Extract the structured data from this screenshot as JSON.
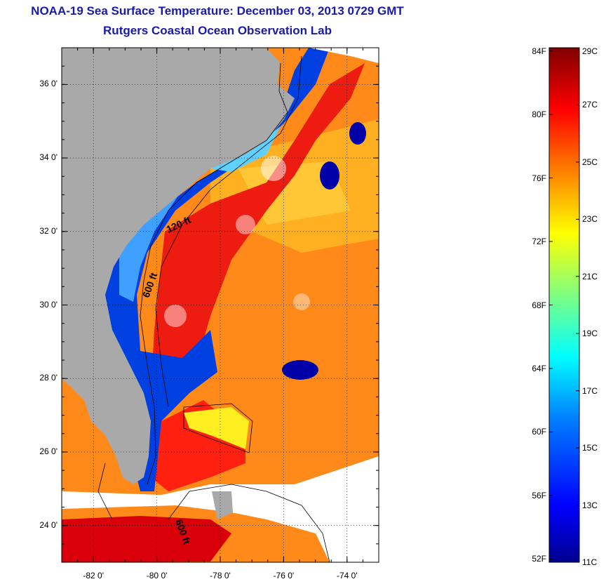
{
  "title_line1": "NOAA-19 Sea Surface Temperature:  December 03, 2013 0729 GMT",
  "title_line2": "Rutgers Coastal Ocean Observation Lab",
  "map": {
    "lat_ticks": [
      {
        "value": 36,
        "label": "36 0'"
      },
      {
        "value": 34,
        "label": "34 0'"
      },
      {
        "value": 32,
        "label": "32 0'"
      },
      {
        "value": 30,
        "label": "30 0'"
      },
      {
        "value": 28,
        "label": "28 0'"
      },
      {
        "value": 26,
        "label": "26 0'"
      },
      {
        "value": 24,
        "label": "24 0'"
      }
    ],
    "lon_ticks": [
      {
        "value": -82,
        "label": "-82 0'"
      },
      {
        "value": -80,
        "label": "-80 0'"
      },
      {
        "value": -78,
        "label": "-78 0'"
      },
      {
        "value": -76,
        "label": "-76 0'"
      },
      {
        "value": -74,
        "label": "-74 0'"
      }
    ],
    "lat_range": [
      23.0,
      37.0
    ],
    "lon_range": [
      -83.0,
      -73.0
    ],
    "contour_labels": [
      "120 ft",
      "600 ft",
      "600 ft"
    ],
    "colors": {
      "land": "#a9a9a9",
      "no_data": "#ffffff"
    }
  },
  "colorbar": {
    "fahrenheit_labels": [
      "84F",
      "80F",
      "76F",
      "72F",
      "68F",
      "64F",
      "60F",
      "56F",
      "52F"
    ],
    "celsius_labels": [
      "29C",
      "27C",
      "25C",
      "23C",
      "21C",
      "19C",
      "17C",
      "15C",
      "13C",
      "11C"
    ],
    "min_c": 11,
    "max_c": 29,
    "colormap": [
      "#00008f",
      "#0000ff",
      "#0080ff",
      "#00ffff",
      "#80ff80",
      "#ffff00",
      "#ff8000",
      "#ff0000",
      "#800000"
    ]
  }
}
